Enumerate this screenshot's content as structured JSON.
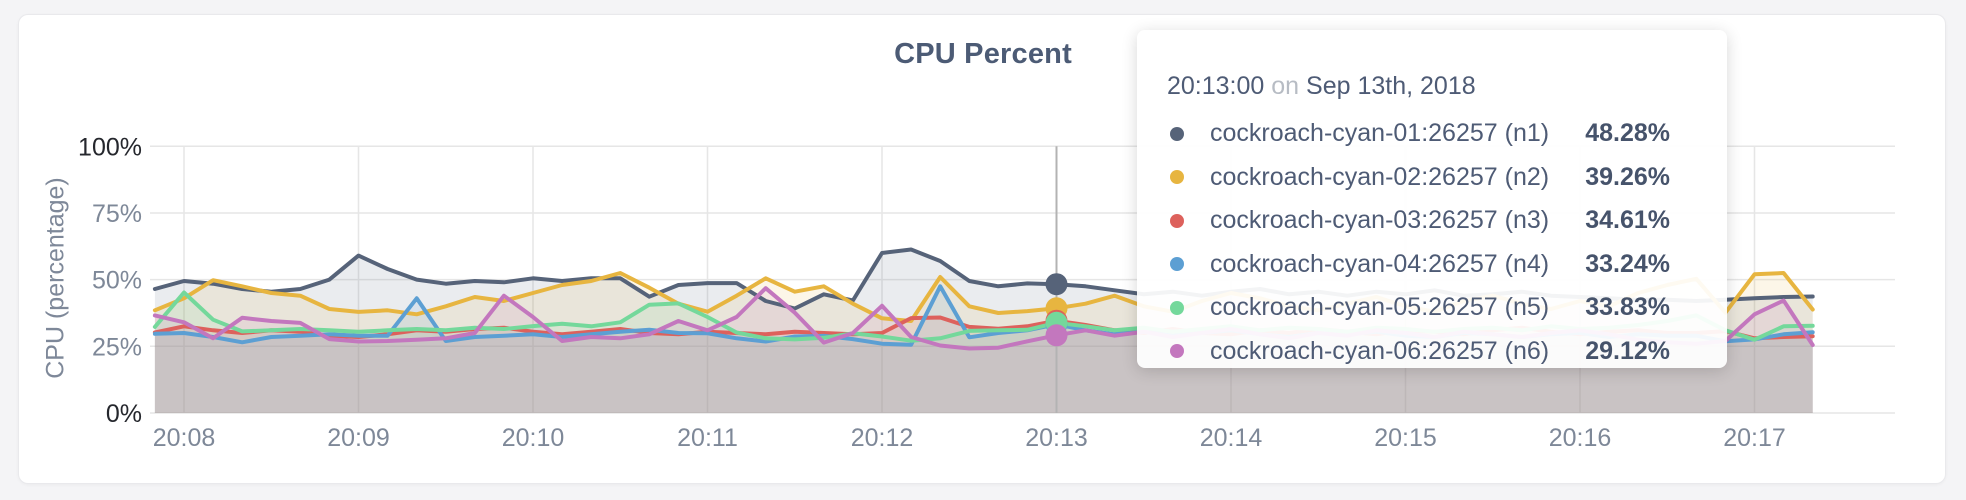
{
  "page": {
    "background": "#f4f4f6",
    "card_background": "#ffffff"
  },
  "panel": {
    "title": "CPU Percent",
    "y_axis_label": "CPU (percentage)"
  },
  "tooltip": {
    "time": "20:13:00",
    "connector": "on",
    "date": "Sep 13th, 2018",
    "rows": [
      {
        "label": "cockroach-cyan-01:26257 (n1)",
        "value": "48.28%",
        "color": "#566379"
      },
      {
        "label": "cockroach-cyan-02:26257 (n2)",
        "value": "39.26%",
        "color": "#e7b540"
      },
      {
        "label": "cockroach-cyan-03:26257 (n3)",
        "value": "34.61%",
        "color": "#dd615c"
      },
      {
        "label": "cockroach-cyan-04:26257 (n4)",
        "value": "33.24%",
        "color": "#5c9fd3"
      },
      {
        "label": "cockroach-cyan-05:26257 (n5)",
        "value": "33.83%",
        "color": "#74d89b"
      },
      {
        "label": "cockroach-cyan-06:26257 (n6)",
        "value": "29.12%",
        "color": "#c377be"
      }
    ]
  },
  "hover": {
    "t_seconds": 300,
    "time_label": "20:13:00"
  },
  "chart_data": {
    "type": "line",
    "title": "CPU Percent",
    "xlabel": "",
    "ylabel": "CPU (percentage)",
    "ylim": [
      0,
      100
    ],
    "grid": true,
    "legend_position": "tooltip",
    "x_unit": "time (seconds relative to 20:08:00, Sep 13th 2018)",
    "x_start_seconds": -10,
    "x_step_seconds": 10,
    "x_ticks": [
      "20:08",
      "20:09",
      "20:10",
      "20:11",
      "20:12",
      "20:13",
      "20:14",
      "20:15",
      "20:16",
      "20:17"
    ],
    "y_ticks": [
      {
        "label": "100%",
        "value": 100,
        "strong": true
      },
      {
        "label": "75%",
        "value": 75,
        "strong": false
      },
      {
        "label": "50%",
        "value": 50,
        "strong": false
      },
      {
        "label": "25%",
        "value": 25,
        "strong": false
      },
      {
        "label": "0%",
        "value": 0,
        "strong": true
      }
    ],
    "series": [
      {
        "id": "n1",
        "name": "cockroach-cyan-01:26257 (n1)",
        "color": "#566379",
        "values": [
          46.5,
          49.5,
          48.5,
          46.5,
          45.5,
          46.5,
          50,
          59,
          54,
          50,
          48.5,
          49.5,
          49,
          50.5,
          49.5,
          50.5,
          50.5,
          43.6,
          48,
          48.7,
          48.7,
          42,
          39.2,
          44.5,
          42.2,
          60,
          61.3,
          57,
          49.5,
          47.5,
          48.6,
          48.28,
          47.5,
          46,
          44.5,
          45.5,
          44,
          45.5,
          46.5,
          44.5,
          45.5,
          44,
          45.5,
          44.5,
          46,
          44,
          44.5,
          45.5,
          44,
          43.5,
          43,
          42.5,
          42.5,
          42,
          42.5,
          43,
          43.5,
          43.7
        ]
      },
      {
        "id": "n2",
        "name": "cockroach-cyan-02:26257 (n2)",
        "color": "#e7b540",
        "values": [
          38.5,
          43,
          49.8,
          47.5,
          45,
          44,
          39,
          37.9,
          38.5,
          37,
          40,
          43.5,
          42,
          45,
          48,
          49.5,
          52.5,
          47,
          41,
          38,
          44,
          50.5,
          45.5,
          47.5,
          41,
          35.5,
          34.5,
          51,
          40,
          37.5,
          38.2,
          39.26,
          41,
          44,
          40,
          38,
          42,
          45,
          43,
          40,
          38.5,
          41,
          43.5,
          40,
          38,
          42,
          44,
          41,
          39,
          42,
          40,
          45,
          48,
          50.3,
          37.6,
          52,
          52.5,
          38.8
        ]
      },
      {
        "id": "n3",
        "name": "cockroach-cyan-03:26257 (n3)",
        "color": "#dd615c",
        "values": [
          30.2,
          32.5,
          31,
          30,
          31,
          30.5,
          29,
          28.5,
          29.5,
          31,
          30.5,
          31.5,
          32,
          30.5,
          29.5,
          30.5,
          31.5,
          30,
          29.5,
          30.5,
          30,
          29.5,
          30.5,
          30,
          29.5,
          30,
          35.6,
          35.8,
          32.3,
          31.6,
          32.5,
          34.61,
          33,
          31,
          30,
          31.5,
          30,
          29.5,
          31,
          30,
          31.5,
          30.5,
          29.5,
          31,
          30.5,
          29.5,
          31,
          32,
          30.5,
          29.5,
          30.5,
          31,
          30,
          30,
          30.7,
          28,
          28.5,
          28.8
        ]
      },
      {
        "id": "n4",
        "name": "cockroach-cyan-04:26257 (n4)",
        "color": "#5c9fd3",
        "values": [
          29.7,
          30,
          28.5,
          26.5,
          28.5,
          29,
          29.5,
          29,
          29,
          43,
          27,
          28.5,
          29,
          29.5,
          28.5,
          29.5,
          30.5,
          31.2,
          30,
          29.9,
          28,
          26.8,
          28.7,
          28.9,
          27.7,
          26,
          25.6,
          47.5,
          28.4,
          30,
          31,
          33.24,
          31,
          29.5,
          30.5,
          29,
          30,
          31,
          29.5,
          28.5,
          30,
          29.5,
          30.5,
          29,
          28.5,
          30,
          29.5,
          28.5,
          29.5,
          30,
          28.5,
          29.5,
          29,
          29,
          26.9,
          27.6,
          29.5,
          30.3
        ]
      },
      {
        "id": "n5",
        "name": "cockroach-cyan-05:26257 (n5)",
        "color": "#74d89b",
        "values": [
          32.3,
          45.2,
          35,
          30.6,
          31,
          31.5,
          31,
          30.5,
          31,
          31.5,
          31,
          32,
          31.5,
          32.6,
          33.5,
          32.5,
          34,
          40.6,
          41.1,
          36,
          30.2,
          28,
          27.6,
          28.2,
          29.9,
          28.7,
          27.1,
          28,
          30.8,
          31,
          31.2,
          33.83,
          32.5,
          31,
          32,
          30.5,
          31.5,
          32.5,
          31,
          32,
          31.5,
          30.5,
          32,
          31.5,
          30.5,
          31.5,
          32,
          31,
          32.5,
          31.5,
          32,
          33,
          34.5,
          36.6,
          31,
          27.5,
          32.5,
          32.7
        ]
      },
      {
        "id": "n6",
        "name": "cockroach-cyan-06:26257 (n6)",
        "color": "#c377be",
        "values": [
          36.6,
          34,
          28,
          35.7,
          34.5,
          33.8,
          27.7,
          26.8,
          27,
          27.5,
          28,
          30,
          44,
          36,
          27,
          28.5,
          28,
          29.5,
          34.5,
          31,
          36,
          46.8,
          37.6,
          26.4,
          30,
          40.2,
          28.5,
          25.3,
          24.2,
          24.5,
          26.9,
          29.12,
          31,
          29,
          30.5,
          28.5,
          30,
          31.5,
          29.5,
          28,
          30,
          29,
          31,
          30,
          28.5,
          30.5,
          29.5,
          28.5,
          30,
          31,
          29.5,
          27.5,
          26.5,
          26,
          27,
          37,
          42.2,
          25.5
        ]
      }
    ]
  }
}
